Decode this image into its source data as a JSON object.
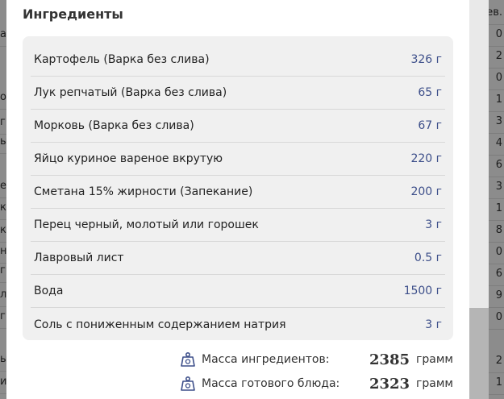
{
  "background": {
    "right_header": "ев.",
    "right_cells": [
      "0",
      "2",
      "0",
      "1",
      "3",
      "4",
      "6",
      "3",
      "1",
      "8",
      "0",
      "6",
      "9",
      "0",
      "2",
      "1"
    ],
    "left_cells": [
      "ая",
      "",
      "",
      "ой",
      "гр",
      "ы",
      "",
      "ен",
      "ко",
      "ка",
      "но",
      "гк",
      "ло",
      "г",
      "ы",
      "и"
    ]
  },
  "modal": {
    "title": "Ингредиенты",
    "ingredients": [
      {
        "name": "Картофель (Варка без слива)",
        "amount": "326 г"
      },
      {
        "name": "Лук репчатый (Варка без слива)",
        "amount": "65 г"
      },
      {
        "name": "Морковь (Варка без слива)",
        "amount": "67 г"
      },
      {
        "name": "Яйцо куриное вареное вкрутую",
        "amount": "220 г"
      },
      {
        "name": "Сметана 15% жирности (Запекание)",
        "amount": "200 г"
      },
      {
        "name": "Перец черный, молотый или горошек",
        "amount": "3 г"
      },
      {
        "name": "Лавровый лист",
        "amount": "0.5 г"
      },
      {
        "name": "Вода",
        "amount": "1500 г"
      },
      {
        "name": "Соль с пониженным содержанием натрия",
        "amount": "3 г"
      }
    ],
    "ingredients_mass": {
      "icon": "weight-icon",
      "label": "Масса ингредиентов:",
      "value": "2385",
      "unit": "грамм"
    },
    "dish_mass": {
      "icon": "weight-icon",
      "label": "Масса готового блюда:",
      "value": "2323",
      "unit": "грамм"
    }
  },
  "colors": {
    "amount": "#3d4f8a",
    "card_bg": "#f0f0f0",
    "overlay": "rgba(0,0,0,0.45)"
  },
  "scrollbar": {
    "position_fraction": 0.77
  }
}
